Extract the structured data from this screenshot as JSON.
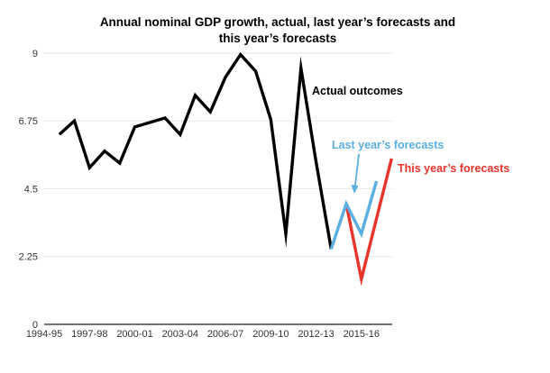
{
  "chart_data": {
    "type": "line",
    "title": "Annual nominal GDP growth, actual, last year’s forecasts and this year’s forecasts",
    "title_lines": [
      "Annual nominal GDP growth, actual, last year’s forecasts and",
      "this year’s forecasts"
    ],
    "xlabel": "",
    "ylabel": "",
    "ylim": [
      0,
      9
    ],
    "yticks": [
      0,
      2.25,
      4.5,
      6.75,
      9
    ],
    "ytick_labels": [
      "0",
      "2.25",
      "4.5",
      "6.75",
      "9"
    ],
    "x": [
      "1994-95",
      "1995-96",
      "1996-97",
      "1997-98",
      "1998-99",
      "1999-00",
      "2000-01",
      "2001-02",
      "2002-03",
      "2003-04",
      "2004-05",
      "2005-06",
      "2006-07",
      "2007-08",
      "2008-09",
      "2009-10",
      "2010-11",
      "2011-12",
      "2012-13",
      "2013-14",
      "2014-15",
      "2015-16",
      "2016-17",
      "2017-18"
    ],
    "xtick_labels": [
      "1994-95",
      "1997-98",
      "2000-01",
      "2003-04",
      "2006-07",
      "2009-10",
      "2012-13",
      "2015-16"
    ],
    "grid": true,
    "series": [
      {
        "name": "Actual outcomes",
        "color": "#000000",
        "x": [
          "1995-96",
          "1996-97",
          "1997-98",
          "1998-99",
          "1999-00",
          "2000-01",
          "2001-02",
          "2002-03",
          "2003-04",
          "2004-05",
          "2005-06",
          "2006-07",
          "2007-08",
          "2008-09",
          "2009-10",
          "2010-11",
          "2011-12",
          "2012-13",
          "2013-14"
        ],
        "values": [
          6.3,
          6.75,
          5.2,
          5.75,
          5.35,
          6.55,
          6.7,
          6.85,
          6.3,
          7.6,
          7.05,
          8.2,
          8.95,
          8.4,
          6.8,
          3.0,
          8.5,
          5.4,
          2.5
        ]
      },
      {
        "name": "Last year’s forecasts",
        "color": "#5aaee2",
        "x": [
          "2013-14",
          "2014-15",
          "2015-16",
          "2016-17"
        ],
        "values": [
          2.5,
          4.0,
          3.0,
          4.75
        ]
      },
      {
        "name": "This year’s forecasts",
        "color": "#e8342a",
        "x": [
          "2014-15",
          "2015-16",
          "2016-17",
          "2017-18"
        ],
        "values": [
          4.0,
          1.5,
          3.5,
          5.5
        ]
      }
    ],
    "annotations": [
      {
        "text": "Actual outcomes",
        "series": 0
      },
      {
        "text": "Last year’s forecasts",
        "series": 1,
        "arrow": true
      },
      {
        "text": "This year’s forecasts",
        "series": 2
      }
    ]
  }
}
